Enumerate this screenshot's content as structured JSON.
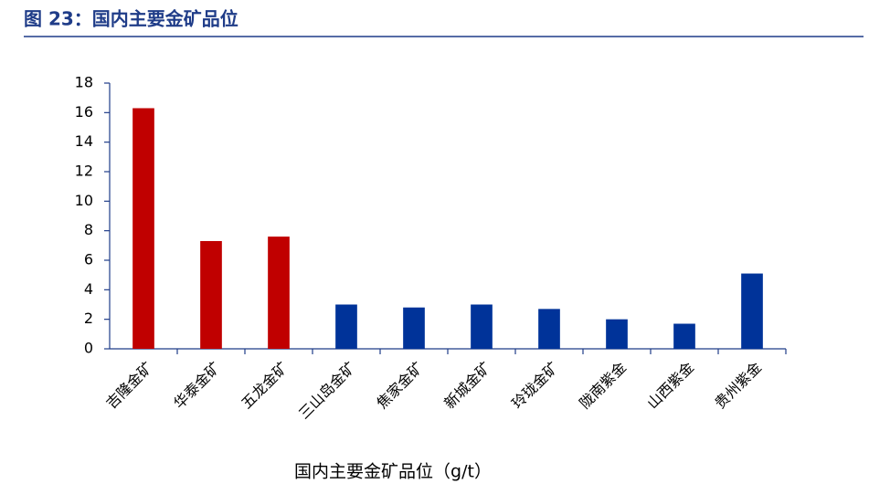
{
  "chart_data": {
    "type": "bar",
    "title": "图 23：国内主要金矿品位",
    "x_label": "国内主要金矿品位（g/t）",
    "categories": [
      "吉隆金矿",
      "华泰金矿",
      "五龙金矿",
      "三山岛金矿",
      "焦家金矿",
      "新城金矿",
      "玲珑金矿",
      "陇南紫金",
      "山西紫金",
      "贵州紫金"
    ],
    "values": [
      16.3,
      7.3,
      7.6,
      3.0,
      2.8,
      3.0,
      2.7,
      2.0,
      1.7,
      5.1
    ],
    "colors": [
      "#c00000",
      "#c00000",
      "#c00000",
      "#003399",
      "#003399",
      "#003399",
      "#003399",
      "#003399",
      "#003399",
      "#003399"
    ],
    "ylim": [
      0,
      18
    ],
    "yticks": [
      0,
      2,
      4,
      6,
      8,
      10,
      12,
      14,
      16,
      18
    ],
    "grid": false
  }
}
